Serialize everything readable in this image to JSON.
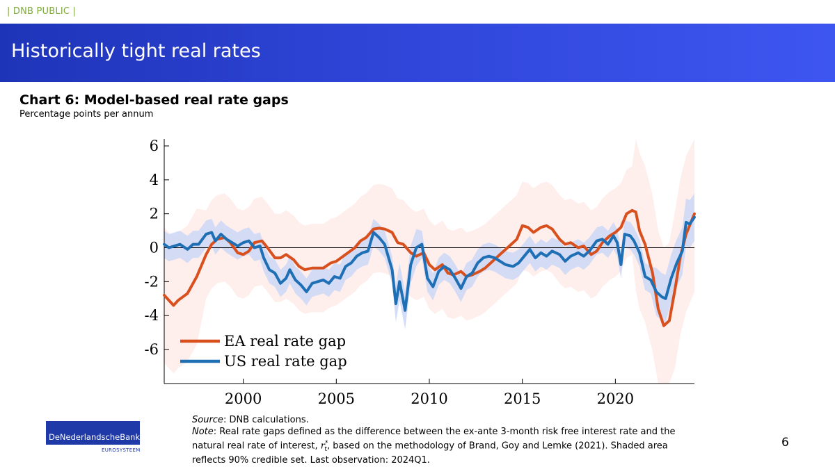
{
  "header": {
    "tag": "| DNB PUBLIC |",
    "title": "Historically tight real rates"
  },
  "chart_title": "Chart 6: Model-based real rate gaps",
  "chart_subtitle": "Percentage points per annum",
  "colors": {
    "ea": "#d9501f",
    "us": "#1f6fb5",
    "ea_band": "#fde8e6",
    "us_band": "#cdd7f7",
    "banner": "#2a40d0"
  },
  "chart_data": {
    "type": "line",
    "x_range": [
      1995.75,
      2024.25
    ],
    "y_range": [
      -8,
      6.5
    ],
    "x_ticks": [
      2000,
      2005,
      2010,
      2015,
      2020
    ],
    "y_ticks": [
      6,
      4,
      2,
      0,
      -2,
      -4,
      -6
    ],
    "zero_line": true,
    "legend_position": "bottom-left",
    "series": [
      {
        "name": "EA real rate gap",
        "color": "#d9501f",
        "points": [
          [
            1995.75,
            -2.8
          ],
          [
            1996.25,
            -3.4
          ],
          [
            1996.5,
            -3.1
          ],
          [
            1997,
            -2.7
          ],
          [
            1997.5,
            -1.7
          ],
          [
            1998,
            -0.4
          ],
          [
            1998.3,
            0.2
          ],
          [
            1998.6,
            0.5
          ],
          [
            1999,
            0.6
          ],
          [
            1999.3,
            0.3
          ],
          [
            1999.7,
            -0.3
          ],
          [
            2000,
            -0.4
          ],
          [
            2000.3,
            -0.2
          ],
          [
            2000.6,
            0.3
          ],
          [
            2001,
            0.4
          ],
          [
            2001.3,
            0.0
          ],
          [
            2001.7,
            -0.6
          ],
          [
            2002,
            -0.6
          ],
          [
            2002.3,
            -0.4
          ],
          [
            2002.7,
            -0.7
          ],
          [
            2003,
            -1.1
          ],
          [
            2003.3,
            -1.3
          ],
          [
            2003.7,
            -1.2
          ],
          [
            2004,
            -1.2
          ],
          [
            2004.3,
            -1.2
          ],
          [
            2004.7,
            -0.9
          ],
          [
            2005,
            -0.8
          ],
          [
            2005.5,
            -0.4
          ],
          [
            2006,
            0.0
          ],
          [
            2006.3,
            0.4
          ],
          [
            2006.6,
            0.6
          ],
          [
            2007,
            1.1
          ],
          [
            2007.3,
            1.15
          ],
          [
            2007.6,
            1.1
          ],
          [
            2008,
            0.9
          ],
          [
            2008.3,
            0.3
          ],
          [
            2008.6,
            0.2
          ],
          [
            2009,
            -0.3
          ],
          [
            2009.3,
            -0.5
          ],
          [
            2009.7,
            -0.3
          ],
          [
            2010,
            -1.0
          ],
          [
            2010.3,
            -1.3
          ],
          [
            2010.7,
            -1.0
          ],
          [
            2011,
            -1.5
          ],
          [
            2011.3,
            -1.6
          ],
          [
            2011.7,
            -1.4
          ],
          [
            2012,
            -1.7
          ],
          [
            2012.3,
            -1.6
          ],
          [
            2012.7,
            -1.4
          ],
          [
            2013,
            -1.2
          ],
          [
            2013.3,
            -0.9
          ],
          [
            2013.7,
            -0.5
          ],
          [
            2014,
            -0.2
          ],
          [
            2014.3,
            0.1
          ],
          [
            2014.7,
            0.5
          ],
          [
            2015,
            1.3
          ],
          [
            2015.3,
            1.2
          ],
          [
            2015.6,
            0.9
          ],
          [
            2016,
            1.2
          ],
          [
            2016.3,
            1.3
          ],
          [
            2016.6,
            1.1
          ],
          [
            2017,
            0.5
          ],
          [
            2017.3,
            0.2
          ],
          [
            2017.6,
            0.3
          ],
          [
            2018,
            0.0
          ],
          [
            2018.3,
            0.1
          ],
          [
            2018.7,
            -0.4
          ],
          [
            2019,
            -0.2
          ],
          [
            2019.3,
            0.3
          ],
          [
            2019.7,
            0.7
          ],
          [
            2020,
            0.9
          ],
          [
            2020.3,
            1.2
          ],
          [
            2020.6,
            2.0
          ],
          [
            2020.9,
            2.2
          ],
          [
            2021.1,
            2.1
          ],
          [
            2021.3,
            1.0
          ],
          [
            2021.6,
            0.2
          ],
          [
            2022,
            -1.5
          ],
          [
            2022.3,
            -3.6
          ],
          [
            2022.6,
            -4.6
          ],
          [
            2022.9,
            -4.3
          ],
          [
            2023.2,
            -2.5
          ],
          [
            2023.5,
            -0.5
          ],
          [
            2023.8,
            0.8
          ],
          [
            2024.25,
            2.0
          ]
        ]
      },
      {
        "name": "US real rate gap",
        "color": "#1f6fb5",
        "points": [
          [
            1995.75,
            0.2
          ],
          [
            1996,
            0.0
          ],
          [
            1996.3,
            0.1
          ],
          [
            1996.6,
            0.2
          ],
          [
            1997,
            -0.1
          ],
          [
            1997.3,
            0.2
          ],
          [
            1997.6,
            0.2
          ],
          [
            1998,
            0.8
          ],
          [
            1998.3,
            0.9
          ],
          [
            1998.5,
            0.4
          ],
          [
            1998.8,
            0.8
          ],
          [
            1999.1,
            0.5
          ],
          [
            1999.4,
            0.3
          ],
          [
            1999.7,
            0.1
          ],
          [
            2000,
            0.3
          ],
          [
            2000.3,
            0.4
          ],
          [
            2000.6,
            0.0
          ],
          [
            2000.9,
            0.1
          ],
          [
            2001.1,
            -0.6
          ],
          [
            2001.4,
            -1.3
          ],
          [
            2001.7,
            -1.5
          ],
          [
            2002,
            -2.1
          ],
          [
            2002.3,
            -1.8
          ],
          [
            2002.5,
            -1.3
          ],
          [
            2002.8,
            -1.9
          ],
          [
            2003.1,
            -2.2
          ],
          [
            2003.4,
            -2.6
          ],
          [
            2003.7,
            -2.1
          ],
          [
            2004,
            -2.0
          ],
          [
            2004.3,
            -1.9
          ],
          [
            2004.6,
            -2.1
          ],
          [
            2004.9,
            -1.7
          ],
          [
            2005.2,
            -1.8
          ],
          [
            2005.5,
            -1.1
          ],
          [
            2005.8,
            -0.9
          ],
          [
            2006.1,
            -0.5
          ],
          [
            2006.4,
            -0.3
          ],
          [
            2006.7,
            -0.2
          ],
          [
            2007,
            0.9
          ],
          [
            2007.3,
            0.6
          ],
          [
            2007.6,
            0.2
          ],
          [
            2008,
            -1.3
          ],
          [
            2008.2,
            -3.3
          ],
          [
            2008.4,
            -2.0
          ],
          [
            2008.7,
            -3.7
          ],
          [
            2009,
            -1.0
          ],
          [
            2009.3,
            0.0
          ],
          [
            2009.6,
            0.2
          ],
          [
            2009.9,
            -1.8
          ],
          [
            2010.2,
            -2.3
          ],
          [
            2010.5,
            -1.4
          ],
          [
            2010.8,
            -1.1
          ],
          [
            2011.1,
            -1.3
          ],
          [
            2011.4,
            -1.8
          ],
          [
            2011.7,
            -2.4
          ],
          [
            2012,
            -1.7
          ],
          [
            2012.3,
            -1.5
          ],
          [
            2012.6,
            -0.9
          ],
          [
            2012.9,
            -0.6
          ],
          [
            2013.2,
            -0.5
          ],
          [
            2013.5,
            -0.6
          ],
          [
            2013.8,
            -0.8
          ],
          [
            2014.1,
            -1.0
          ],
          [
            2014.5,
            -1.1
          ],
          [
            2014.8,
            -0.9
          ],
          [
            2015.1,
            -0.5
          ],
          [
            2015.4,
            -0.1
          ],
          [
            2015.7,
            -0.6
          ],
          [
            2016,
            -0.3
          ],
          [
            2016.3,
            -0.5
          ],
          [
            2016.6,
            -0.2
          ],
          [
            2017,
            -0.4
          ],
          [
            2017.3,
            -0.8
          ],
          [
            2017.6,
            -0.5
          ],
          [
            2018,
            -0.3
          ],
          [
            2018.3,
            -0.5
          ],
          [
            2018.6,
            -0.2
          ],
          [
            2019,
            0.4
          ],
          [
            2019.3,
            0.5
          ],
          [
            2019.6,
            0.2
          ],
          [
            2019.9,
            0.7
          ],
          [
            2020.1,
            0.3
          ],
          [
            2020.3,
            -1.0
          ],
          [
            2020.5,
            0.8
          ],
          [
            2020.8,
            0.7
          ],
          [
            2021,
            0.4
          ],
          [
            2021.3,
            -0.3
          ],
          [
            2021.6,
            -1.7
          ],
          [
            2021.9,
            -1.9
          ],
          [
            2022.2,
            -2.6
          ],
          [
            2022.5,
            -2.9
          ],
          [
            2022.7,
            -3.0
          ],
          [
            2023,
            -1.8
          ],
          [
            2023.3,
            -0.9
          ],
          [
            2023.6,
            -0.2
          ],
          [
            2023.8,
            1.5
          ],
          [
            2024,
            1.4
          ],
          [
            2024.25,
            1.8
          ]
        ]
      }
    ],
    "band_note": "Shaded area reflects 90% credible set"
  },
  "legend": {
    "ea": "EA real rate gap",
    "us": "US real rate gap"
  },
  "logo": {
    "name": "DeNederlandscheBank",
    "sub": "EUROSYSTEEM"
  },
  "notes": {
    "source_label": "Source",
    "source_text": ": DNB calculations.",
    "note_label": "Note",
    "note_text_1": ": Real rate gaps defined as the difference between the ex-ante 3-month risk free interest rate and the natural real rate of interest, ",
    "note_symbol": "r",
    "note_sub": "t",
    "note_sup": "*",
    "note_text_2": ", based on the methodology of Brand, Goy and Lemke (2021). Shaded area reflects 90% credible set. Last observation: 2024Q1."
  },
  "page_number": "6"
}
